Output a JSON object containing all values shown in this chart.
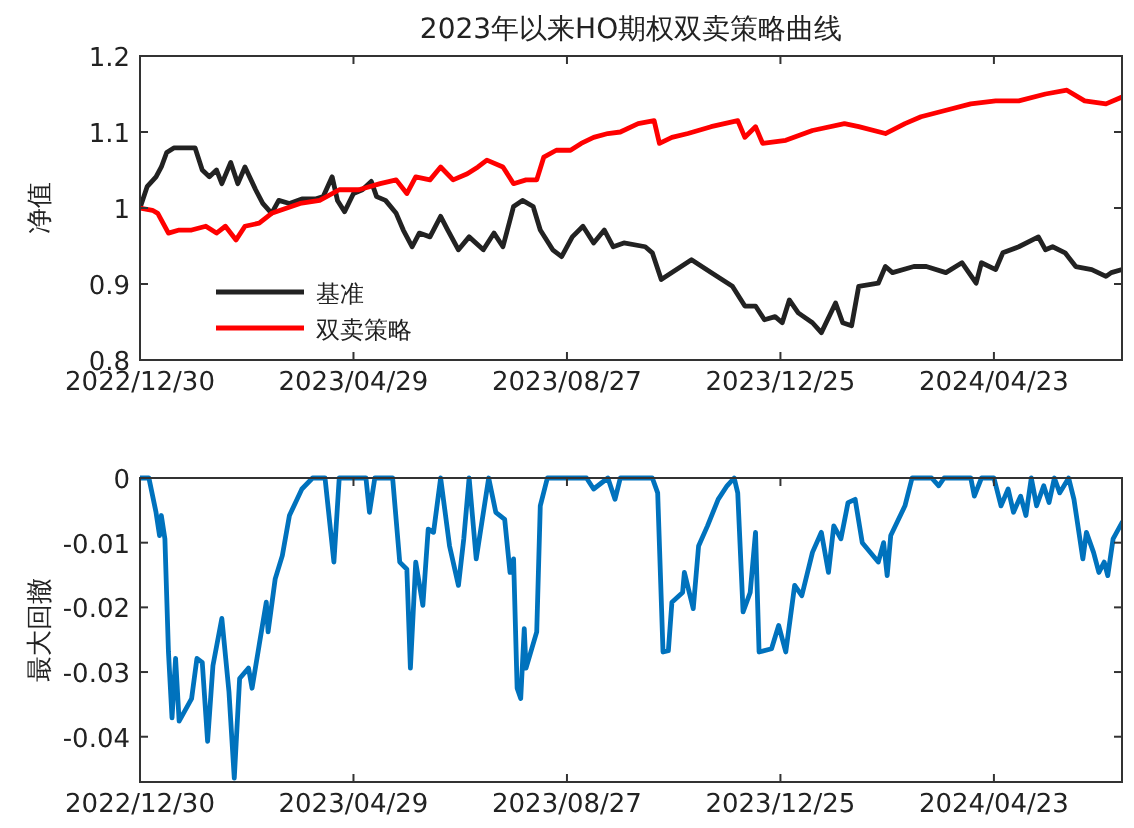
{
  "chart_data": [
    {
      "type": "line",
      "title": "2023年以来HO期权双卖策略曲线",
      "ylabel": "净值",
      "legend": "bottom left",
      "xlim": [
        "2022-12-30",
        "2024-07-04"
      ],
      "ylim": [
        0.8,
        1.2
      ],
      "yticks": [
        0.8,
        0.9,
        1,
        1.1,
        1.2
      ],
      "xticks": [
        {
          "value": "2022-12-30",
          "label": "2022/12/30"
        },
        {
          "value": "2023-04-29",
          "label": "2023/04/29"
        },
        {
          "value": "2023-08-27",
          "label": "2023/08/27"
        },
        {
          "value": "2023-12-25",
          "label": "2023/12/25"
        },
        {
          "value": "2024-04-23",
          "label": "2024/04/23"
        }
      ],
      "series": [
        {
          "name": "基准",
          "color": "#222222",
          "x": [
            "2022-12-30",
            "2023-01-03",
            "2023-01-08",
            "2023-01-11",
            "2023-01-14",
            "2023-01-18",
            "2023-01-30",
            "2023-02-03",
            "2023-02-07",
            "2023-02-11",
            "2023-02-14",
            "2023-02-19",
            "2023-02-23",
            "2023-02-27",
            "2023-03-05",
            "2023-03-09",
            "2023-03-14",
            "2023-03-18",
            "2023-03-24",
            "2023-03-31",
            "2023-04-08",
            "2023-04-12",
            "2023-04-17",
            "2023-04-20",
            "2023-04-24",
            "2023-04-29",
            "2023-05-04",
            "2023-05-09",
            "2023-05-12",
            "2023-05-17",
            "2023-05-23",
            "2023-05-27",
            "2023-06-01",
            "2023-06-05",
            "2023-06-11",
            "2023-06-17",
            "2023-06-21",
            "2023-06-27",
            "2023-07-03",
            "2023-07-11",
            "2023-07-17",
            "2023-07-22",
            "2023-07-28",
            "2023-08-02",
            "2023-08-08",
            "2023-08-12",
            "2023-08-19",
            "2023-08-24",
            "2023-08-30",
            "2023-09-05",
            "2023-09-11",
            "2023-09-17",
            "2023-09-22",
            "2023-09-28",
            "2023-10-10",
            "2023-10-14",
            "2023-10-19",
            "2023-10-25",
            "2023-11-05",
            "2023-11-16",
            "2023-11-28",
            "2023-12-05",
            "2023-12-11",
            "2023-12-16",
            "2023-12-22",
            "2023-12-26",
            "2023-12-30",
            "2024-01-04",
            "2024-01-12",
            "2024-01-17",
            "2024-01-25",
            "2024-01-29",
            "2024-02-03",
            "2024-02-07",
            "2024-02-18",
            "2024-02-22",
            "2024-02-26",
            "2024-03-09",
            "2024-03-16",
            "2024-03-27",
            "2024-04-05",
            "2024-04-13",
            "2024-04-16",
            "2024-04-24",
            "2024-04-28",
            "2024-05-07",
            "2024-05-18",
            "2024-05-22",
            "2024-05-26",
            "2024-06-02",
            "2024-06-08",
            "2024-06-17",
            "2024-06-25",
            "2024-06-28",
            "2024-07-04"
          ],
          "values": [
            1.0,
            1.028,
            1.041,
            1.054,
            1.073,
            1.079,
            1.079,
            1.05,
            1.041,
            1.05,
            1.032,
            1.06,
            1.032,
            1.054,
            1.024,
            1.006,
            0.993,
            1.01,
            1.006,
            1.012,
            1.012,
            1.015,
            1.041,
            1.01,
            0.995,
            1.019,
            1.024,
            1.035,
            1.015,
            1.01,
            0.993,
            0.971,
            0.949,
            0.967,
            0.962,
            0.989,
            0.971,
            0.945,
            0.962,
            0.945,
            0.967,
            0.949,
            1.002,
            1.01,
            1.002,
            0.971,
            0.945,
            0.936,
            0.962,
            0.976,
            0.954,
            0.971,
            0.949,
            0.954,
            0.949,
            0.941,
            0.906,
            0.915,
            0.932,
            0.915,
            0.897,
            0.871,
            0.871,
            0.853,
            0.857,
            0.849,
            0.879,
            0.862,
            0.849,
            0.836,
            0.875,
            0.849,
            0.845,
            0.897,
            0.901,
            0.923,
            0.915,
            0.923,
            0.923,
            0.915,
            0.928,
            0.901,
            0.928,
            0.919,
            0.941,
            0.949,
            0.962,
            0.945,
            0.949,
            0.941,
            0.923,
            0.919,
            0.91,
            0.915,
            0.919
          ]
        },
        {
          "name": "双卖策略",
          "color": "#ff0000",
          "x": [
            "2022-12-30",
            "2023-01-06",
            "2023-01-09",
            "2023-01-15",
            "2023-01-21",
            "2023-01-28",
            "2023-02-05",
            "2023-02-11",
            "2023-02-16",
            "2023-02-22",
            "2023-02-27",
            "2023-03-07",
            "2023-03-14",
            "2023-03-30",
            "2023-04-10",
            "2023-04-21",
            "2023-05-02",
            "2023-05-14",
            "2023-05-23",
            "2023-05-29",
            "2023-06-03",
            "2023-06-11",
            "2023-06-17",
            "2023-06-24",
            "2023-07-02",
            "2023-07-08",
            "2023-07-13",
            "2023-07-22",
            "2023-07-28",
            "2023-08-04",
            "2023-08-10",
            "2023-08-14",
            "2023-08-21",
            "2023-08-29",
            "2023-09-04",
            "2023-09-11",
            "2023-09-19",
            "2023-09-26",
            "2023-10-06",
            "2023-10-15",
            "2023-10-18",
            "2023-10-25",
            "2023-11-03",
            "2023-11-16",
            "2023-12-01",
            "2023-12-05",
            "2023-12-11",
            "2023-12-15",
            "2023-12-28",
            "2024-01-12",
            "2024-01-30",
            "2024-02-07",
            "2024-02-22",
            "2024-03-04",
            "2024-03-13",
            "2024-03-26",
            "2024-04-10",
            "2024-04-24",
            "2024-05-07",
            "2024-05-22",
            "2024-06-03",
            "2024-06-13",
            "2024-06-25",
            "2024-07-04"
          ],
          "values": [
            1.0,
            0.997,
            0.993,
            0.967,
            0.971,
            0.971,
            0.976,
            0.967,
            0.976,
            0.958,
            0.976,
            0.98,
            0.993,
            1.006,
            1.01,
            1.024,
            1.024,
            1.032,
            1.037,
            1.019,
            1.041,
            1.037,
            1.054,
            1.037,
            1.045,
            1.054,
            1.063,
            1.054,
            1.032,
            1.037,
            1.037,
            1.067,
            1.076,
            1.076,
            1.085,
            1.093,
            1.098,
            1.1,
            1.111,
            1.115,
            1.085,
            1.093,
            1.098,
            1.107,
            1.115,
            1.093,
            1.107,
            1.085,
            1.089,
            1.102,
            1.111,
            1.107,
            1.098,
            1.111,
            1.12,
            1.128,
            1.137,
            1.141,
            1.141,
            1.15,
            1.155,
            1.141,
            1.137,
            1.146
          ]
        }
      ]
    },
    {
      "type": "line",
      "ylabel": "最大回撤",
      "xlim": [
        "2022-12-30",
        "2024-07-04"
      ],
      "ylim": [
        -0.047,
        0
      ],
      "yticks": [
        -0.04,
        -0.03,
        -0.02,
        -0.01,
        0
      ],
      "xticks": [
        {
          "value": "2022-12-30",
          "label": "2022/12/30"
        },
        {
          "value": "2023-04-29",
          "label": "2023/04/29"
        },
        {
          "value": "2023-08-27",
          "label": "2023/08/27"
        },
        {
          "value": "2023-12-25",
          "label": "2023/12/25"
        },
        {
          "value": "2024-04-23",
          "label": "2024/04/23"
        }
      ],
      "series": [
        {
          "color": "#0072bd",
          "x": [
            "2022-12-30",
            "2023-01-04",
            "2023-01-08",
            "2023-01-10",
            "2023-01-11",
            "2023-01-13",
            "2023-01-15",
            "2023-01-17",
            "2023-01-19",
            "2023-01-21",
            "2023-01-28",
            "2023-01-31",
            "2023-02-03",
            "2023-02-06",
            "2023-02-09",
            "2023-02-14",
            "2023-02-18",
            "2023-02-21",
            "2023-02-24",
            "2023-03-01",
            "2023-03-03",
            "2023-03-07",
            "2023-03-11",
            "2023-03-12",
            "2023-03-16",
            "2023-03-20",
            "2023-03-24",
            "2023-03-31",
            "2023-04-06",
            "2023-04-13",
            "2023-04-18",
            "2023-04-21",
            "2023-05-06",
            "2023-05-08",
            "2023-05-11",
            "2023-05-21",
            "2023-05-25",
            "2023-05-29",
            "2023-05-31",
            "2023-06-03",
            "2023-06-07",
            "2023-06-10",
            "2023-06-13",
            "2023-06-17",
            "2023-06-22",
            "2023-06-27",
            "2023-06-30",
            "2023-07-03",
            "2023-07-07",
            "2023-07-14",
            "2023-07-18",
            "2023-07-23",
            "2023-07-26",
            "2023-07-28",
            "2023-07-30",
            "2023-08-01",
            "2023-08-03",
            "2023-08-04",
            "2023-08-10",
            "2023-08-12",
            "2023-08-16",
            "2023-09-07",
            "2023-09-11",
            "2023-09-19",
            "2023-09-23",
            "2023-09-26",
            "2023-10-14",
            "2023-10-17",
            "2023-10-20",
            "2023-10-23",
            "2023-10-25",
            "2023-10-31",
            "2023-11-01",
            "2023-11-06",
            "2023-11-09",
            "2023-11-14",
            "2023-11-20",
            "2023-11-25",
            "2023-11-29",
            "2023-12-01",
            "2023-12-04",
            "2023-12-08",
            "2023-12-11",
            "2023-12-13",
            "2023-12-20",
            "2023-12-24",
            "2023-12-28",
            "2024-01-02",
            "2024-01-06",
            "2024-01-12",
            "2024-01-17",
            "2024-01-21",
            "2024-01-24",
            "2024-01-28",
            "2024-02-01",
            "2024-02-05",
            "2024-02-09",
            "2024-02-18",
            "2024-02-21",
            "2024-02-23",
            "2024-02-25",
            "2024-03-04",
            "2024-03-08",
            "2024-03-19",
            "2024-03-23",
            "2024-03-26",
            "2024-04-10",
            "2024-04-12",
            "2024-04-16",
            "2024-04-23",
            "2024-04-27",
            "2024-05-01",
            "2024-05-04",
            "2024-05-08",
            "2024-05-11",
            "2024-05-14",
            "2024-05-17",
            "2024-05-21",
            "2024-05-24",
            "2024-05-27",
            "2024-05-30",
            "2024-06-04",
            "2024-06-07",
            "2024-06-12",
            "2024-06-14",
            "2024-06-18",
            "2024-06-21",
            "2024-06-24",
            "2024-06-26",
            "2024-06-29",
            "2024-07-04"
          ],
          "values": [
            0,
            0,
            -0.0053,
            -0.0089,
            -0.0058,
            -0.0094,
            -0.0269,
            -0.0371,
            -0.0279,
            -0.0376,
            -0.0341,
            -0.0279,
            -0.0285,
            -0.0407,
            -0.029,
            -0.0217,
            -0.033,
            -0.0464,
            -0.031,
            -0.0294,
            -0.0325,
            -0.0258,
            -0.0192,
            -0.0238,
            -0.0156,
            -0.012,
            -0.0058,
            -0.0017,
            0,
            0,
            -0.013,
            0,
            0,
            -0.0053,
            0,
            0,
            -0.013,
            -0.0141,
            -0.0294,
            -0.013,
            -0.0197,
            -0.0079,
            -0.0084,
            0,
            -0.0105,
            -0.0166,
            -0.0094,
            0,
            -0.0125,
            0,
            -0.0053,
            -0.0064,
            -0.0146,
            -0.0125,
            -0.0325,
            -0.0341,
            -0.0233,
            -0.0294,
            -0.0238,
            -0.0043,
            0,
            0,
            -0.0017,
            0,
            -0.0033,
            0,
            0,
            -0.0023,
            -0.0269,
            -0.0267,
            -0.0192,
            -0.0177,
            -0.0146,
            -0.0202,
            -0.0105,
            -0.0074,
            -0.0033,
            -0.0012,
            0,
            -0.0023,
            -0.0207,
            -0.0177,
            -0.0084,
            -0.0269,
            -0.0264,
            -0.0228,
            -0.0269,
            -0.0166,
            -0.0182,
            -0.0115,
            -0.0084,
            -0.0146,
            -0.0074,
            -0.0094,
            -0.0038,
            -0.0033,
            -0.01,
            -0.013,
            -0.01,
            -0.0151,
            -0.0089,
            -0.0043,
            0,
            0,
            -0.0012,
            0,
            0,
            -0.0028,
            0,
            0,
            -0.0043,
            -0.0017,
            -0.0053,
            -0.0028,
            -0.0058,
            0,
            -0.0043,
            -0.0012,
            -0.0038,
            0,
            -0.0023,
            0,
            -0.0033,
            -0.0125,
            -0.0084,
            -0.0115,
            -0.0146,
            -0.013,
            -0.0151,
            -0.0094,
            -0.0069
          ]
        }
      ]
    }
  ]
}
